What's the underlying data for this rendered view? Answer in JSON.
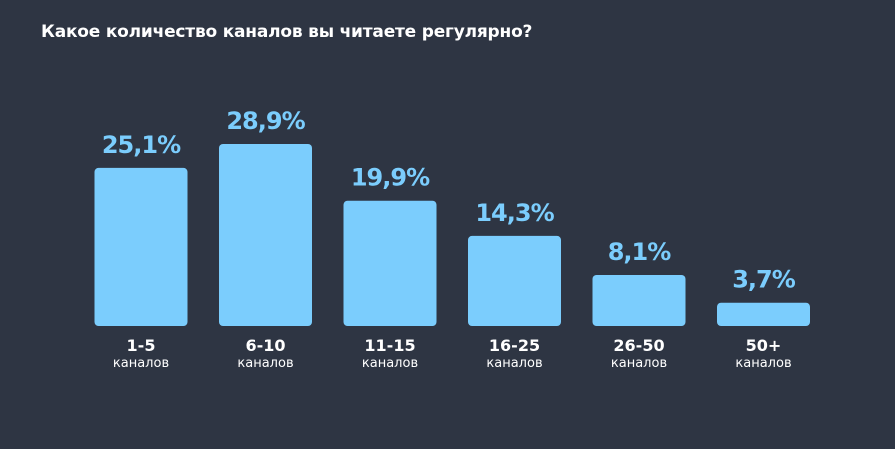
{
  "chart_data": {
    "type": "bar",
    "title": "Какое количество каналов вы читаете регулярно?",
    "categories": [
      "1-5",
      "6-10",
      "11-15",
      "16-25",
      "26-50",
      "50+"
    ],
    "category_unit": "каналов",
    "values": [
      25.1,
      28.9,
      19.9,
      14.3,
      8.1,
      3.7
    ],
    "value_labels": [
      "25,1%",
      "28,9%",
      "19,9%",
      "14,3%",
      "8,1%",
      "3,7%"
    ],
    "ylim": [
      0,
      30
    ],
    "grid": false,
    "legend": "none"
  },
  "colors": {
    "background": "#2e3543",
    "bar": "#7bcdfd",
    "value_label": "#7bcdfd",
    "text": "#ffffff"
  }
}
